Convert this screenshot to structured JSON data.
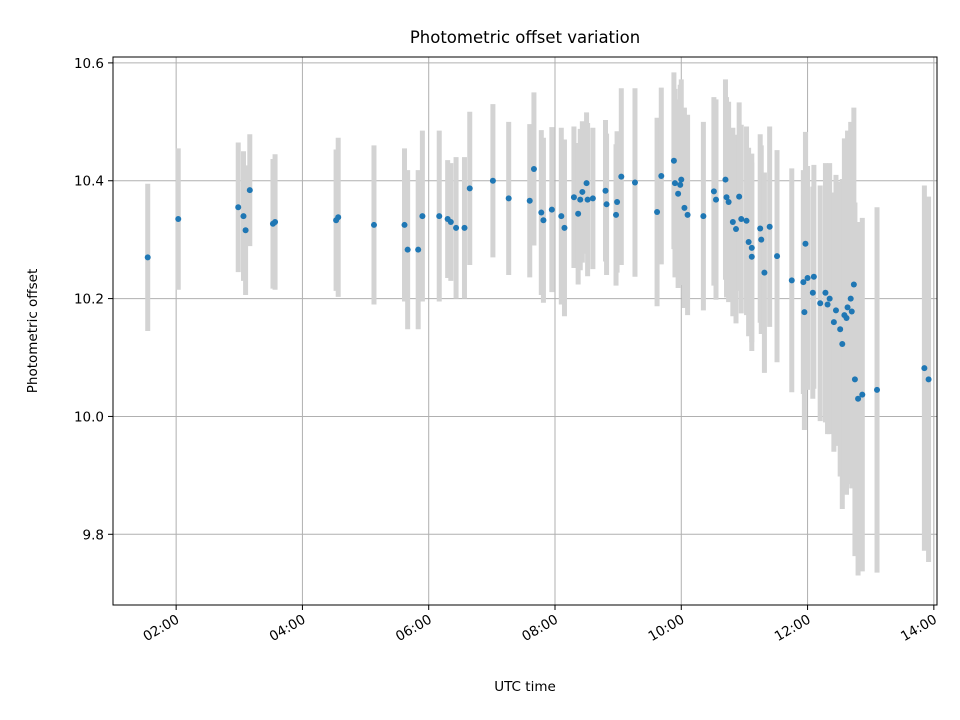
{
  "chart_data": {
    "type": "scatter",
    "title": "Photometric offset variation",
    "xlabel": "UTC time",
    "ylabel": "Photometric offset",
    "x_ticks": [
      "02:00",
      "04:00",
      "06:00",
      "08:00",
      "10:00",
      "12:00",
      "14:00"
    ],
    "y_ticks": [
      "9.8",
      "10.0",
      "10.2",
      "10.4",
      "10.6"
    ],
    "xlim": [
      "01:00",
      "14:03"
    ],
    "ylim": [
      9.68,
      10.61
    ],
    "grid": true,
    "colors": {
      "point": "#1f77b4",
      "errorbar": "#d3d3d3",
      "grid": "#b0b0b0"
    },
    "series": [
      {
        "x": [
          "01:33",
          "02:02",
          "02:59",
          "03:04",
          "03:06",
          "03:10",
          "03:32",
          "03:34",
          "04:32",
          "04:34",
          "05:08",
          "05:37",
          "05:40",
          "05:50",
          "05:54",
          "06:10",
          "06:18",
          "06:21",
          "06:26",
          "06:34",
          "06:39",
          "07:01",
          "07:16",
          "07:36",
          "07:40",
          "07:47",
          "07:49",
          "07:57",
          "08:06",
          "08:09",
          "08:18",
          "08:22",
          "08:24",
          "08:26",
          "08:30",
          "08:31",
          "08:36",
          "08:48",
          "08:49",
          "08:58",
          "08:59",
          "09:03",
          "09:16",
          "09:37",
          "09:41",
          "09:53",
          "09:54",
          "09:57",
          "09:59",
          "10:00",
          "10:03",
          "10:06",
          "10:21",
          "10:31",
          "10:33",
          "10:42",
          "10:43",
          "10:45",
          "10:49",
          "10:52",
          "10:55",
          "10:57",
          "11:02",
          "11:04",
          "11:07",
          "11:07",
          "11:15",
          "11:16",
          "11:19",
          "11:24",
          "11:31",
          "11:45",
          "11:56",
          "11:57",
          "11:58",
          "12:00",
          "12:05",
          "12:06",
          "12:12",
          "12:17",
          "12:19",
          "12:21",
          "12:25",
          "12:27",
          "12:31",
          "12:33",
          "12:35",
          "12:37",
          "12:38",
          "12:41",
          "12:42",
          "12:44",
          "12:45",
          "12:48",
          "12:52",
          "13:06",
          "13:51",
          "13:55"
        ],
        "y": [
          10.27,
          10.335,
          10.355,
          10.34,
          10.316,
          10.384,
          10.327,
          10.33,
          10.333,
          10.338,
          10.325,
          10.325,
          10.283,
          10.283,
          10.34,
          10.34,
          10.335,
          10.33,
          10.32,
          10.32,
          10.387,
          10.4,
          10.37,
          10.366,
          10.42,
          10.346,
          10.333,
          10.351,
          10.34,
          10.32,
          10.372,
          10.344,
          10.368,
          10.381,
          10.396,
          10.368,
          10.37,
          10.383,
          10.36,
          10.342,
          10.364,
          10.407,
          10.397,
          10.347,
          10.408,
          10.434,
          10.396,
          10.378,
          10.393,
          10.402,
          10.354,
          10.342,
          10.34,
          10.382,
          10.368,
          10.402,
          10.372,
          10.364,
          10.33,
          10.318,
          10.373,
          10.335,
          10.332,
          10.296,
          10.286,
          10.271,
          10.319,
          10.3,
          10.244,
          10.322,
          10.272,
          10.231,
          10.228,
          10.177,
          10.293,
          10.235,
          10.21,
          10.237,
          10.192,
          10.21,
          10.19,
          10.2,
          10.16,
          10.18,
          10.148,
          10.123,
          10.172,
          10.167,
          10.185,
          10.2,
          10.178,
          10.224,
          10.063,
          10.03,
          10.037,
          10.045,
          10.082,
          10.063
        ],
        "yerr": [
          0.125,
          0.12,
          0.11,
          0.11,
          0.11,
          0.095,
          0.11,
          0.115,
          0.12,
          0.135,
          0.135,
          0.13,
          0.135,
          0.135,
          0.145,
          0.145,
          0.1,
          0.1,
          0.12,
          0.12,
          0.13,
          0.13,
          0.13,
          0.13,
          0.13,
          0.14,
          0.14,
          0.14,
          0.15,
          0.15,
          0.12,
          0.12,
          0.12,
          0.12,
          0.12,
          0.13,
          0.12,
          0.12,
          0.12,
          0.12,
          0.12,
          0.15,
          0.16,
          0.16,
          0.15,
          0.15,
          0.16,
          0.16,
          0.17,
          0.17,
          0.17,
          0.17,
          0.16,
          0.16,
          0.17,
          0.17,
          0.17,
          0.17,
          0.16,
          0.16,
          0.16,
          0.16,
          0.16,
          0.16,
          0.16,
          0.16,
          0.16,
          0.16,
          0.17,
          0.17,
          0.18,
          0.19,
          0.19,
          0.2,
          0.19,
          0.19,
          0.18,
          0.19,
          0.2,
          0.22,
          0.22,
          0.23,
          0.22,
          0.23,
          0.25,
          0.28,
          0.3,
          0.3,
          0.3,
          0.3,
          0.3,
          0.3,
          0.3,
          0.3,
          0.3,
          0.31,
          0.31,
          0.31
        ]
      }
    ]
  }
}
